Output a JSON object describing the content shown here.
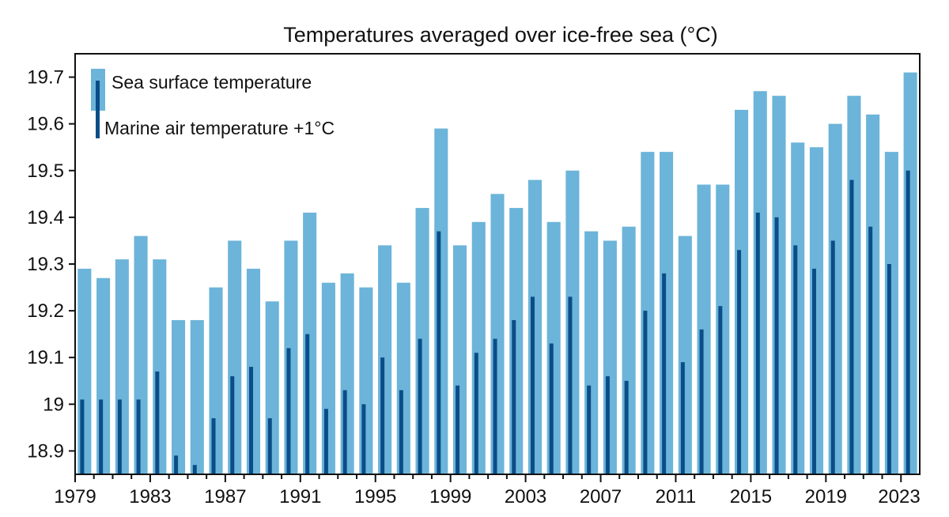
{
  "chart_data": {
    "type": "bar",
    "title": "Temperatures averaged over ice-free sea (°C)",
    "xlabel": "",
    "ylabel": "",
    "ylim": [
      18.85,
      19.75
    ],
    "yticks": [
      "18.9",
      "19",
      "19.1",
      "19.2",
      "19.3",
      "19.4",
      "19.5",
      "19.6",
      "19.7"
    ],
    "ytick_values": [
      18.9,
      19.0,
      19.1,
      19.2,
      19.3,
      19.4,
      19.5,
      19.6,
      19.7
    ],
    "xtick_labels": [
      "1979",
      "1983",
      "1987",
      "1991",
      "1995",
      "1999",
      "2003",
      "2007",
      "2011",
      "2015",
      "2019",
      "2023"
    ],
    "categories": [
      1979,
      1980,
      1981,
      1982,
      1983,
      1984,
      1985,
      1986,
      1987,
      1988,
      1989,
      1990,
      1991,
      1992,
      1993,
      1994,
      1995,
      1996,
      1997,
      1998,
      1999,
      2000,
      2001,
      2002,
      2003,
      2004,
      2005,
      2006,
      2007,
      2008,
      2009,
      2010,
      2011,
      2012,
      2013,
      2014,
      2015,
      2016,
      2017,
      2018,
      2019,
      2020,
      2021,
      2022,
      2023
    ],
    "legend_position": "top-left",
    "series": [
      {
        "name": "Sea surface temperature",
        "color": "#6cb4d9",
        "values": [
          19.29,
          19.27,
          19.31,
          19.36,
          19.31,
          19.18,
          19.18,
          19.25,
          19.35,
          19.29,
          19.22,
          19.35,
          19.41,
          19.26,
          19.28,
          19.25,
          19.34,
          19.26,
          19.42,
          19.59,
          19.34,
          19.39,
          19.45,
          19.42,
          19.48,
          19.39,
          19.5,
          19.37,
          19.35,
          19.38,
          19.54,
          19.54,
          19.36,
          19.47,
          19.47,
          19.63,
          19.67,
          19.66,
          19.56,
          19.55,
          19.6,
          19.66,
          19.62,
          19.54,
          19.71
        ]
      },
      {
        "name": "Marine air temperature +1°C",
        "color": "#0a4d88",
        "values": [
          19.01,
          19.01,
          19.01,
          19.01,
          19.07,
          18.89,
          18.87,
          18.97,
          19.06,
          19.08,
          18.97,
          19.12,
          19.15,
          18.99,
          19.03,
          19.0,
          19.1,
          19.03,
          19.14,
          19.37,
          19.04,
          19.11,
          19.14,
          19.18,
          19.23,
          19.13,
          19.23,
          19.04,
          19.06,
          19.05,
          19.2,
          19.28,
          19.09,
          19.16,
          19.21,
          19.33,
          19.41,
          19.4,
          19.34,
          19.29,
          19.35,
          19.48,
          19.38,
          19.3,
          19.5
        ]
      }
    ]
  }
}
